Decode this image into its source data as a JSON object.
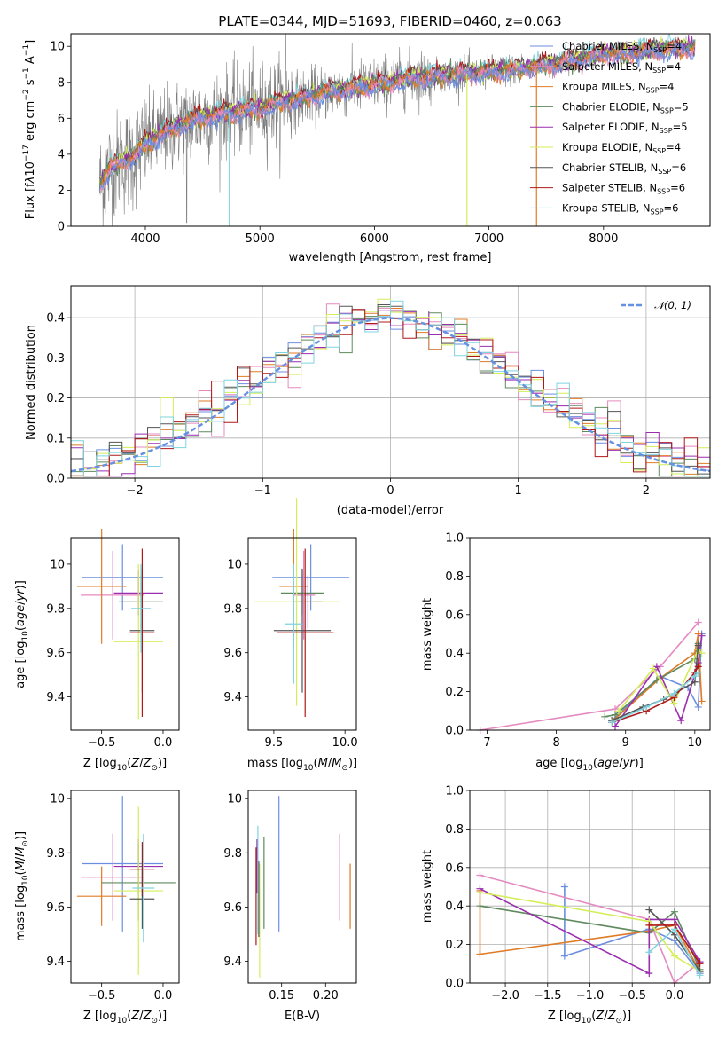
{
  "colors": [
    "#6c8ee0",
    "#e58ac0",
    "#e07b27",
    "#5e8a5e",
    "#9a2fb0",
    "#d4ee5a",
    "#555555",
    "#b01818",
    "#7dd3df"
  ],
  "spectrum_color": "#7f7f7f",
  "chart_data": [
    {
      "id": "spectrum",
      "type": "line",
      "title": "PLATE=0344, MJD=51693, FIBERID=0460, z=0.063",
      "xlabel": "wavelength [Angstrom, rest frame]",
      "ylabel": "Flux [f_λ10^-17 erg cm^-2 s^-1 A^-1]",
      "xlim": [
        3350,
        8930
      ],
      "ylim": [
        0,
        10.7
      ],
      "xticks": [
        4000,
        5000,
        6000,
        7000,
        8000
      ],
      "yticks": [
        0,
        2,
        4,
        6,
        8,
        10
      ],
      "legend_position": "upper-right",
      "legend": [
        {
          "name": "Chabrier MILES, N_SSP=4",
          "prefix": "Chabrier MILES, N",
          "sub": "SSP",
          "suffix": "=4"
        },
        {
          "name": "Salpeter MILES, N_SSP=4",
          "prefix": "Salpeter MILES, N",
          "sub": "SSP",
          "suffix": "=4"
        },
        {
          "name": "Kroupa MILES, N_SSP=4",
          "prefix": "Kroupa MILES, N",
          "sub": "SSP",
          "suffix": "=4"
        },
        {
          "name": "Chabrier ELODIE, N_SSP=5",
          "prefix": "Chabrier ELODIE, N",
          "sub": "SSP",
          "suffix": "=5"
        },
        {
          "name": "Salpeter ELODIE, N_SSP=5",
          "prefix": "Salpeter ELODIE, N",
          "sub": "SSP",
          "suffix": "=5"
        },
        {
          "name": "Kroupa ELODIE, N_SSP=4",
          "prefix": "Kroupa ELODIE, N",
          "sub": "SSP",
          "suffix": "=4"
        },
        {
          "name": "Chabrier STELIB, N_SSP=6",
          "prefix": "Chabrier STELIB, N",
          "sub": "SSP",
          "suffix": "=6"
        },
        {
          "name": "Salpeter STELIB, N_SSP=6",
          "prefix": "Salpeter STELIB, N",
          "sub": "SSP",
          "suffix": "=6"
        },
        {
          "name": "Kroupa STELIB, N_SSP=6",
          "prefix": "Kroupa STELIB, N",
          "sub": "SSP",
          "suffix": "=6"
        }
      ],
      "continuum": {
        "x": [
          3600,
          3700,
          3800,
          3900,
          4000,
          4200,
          4400,
          4600,
          4800,
          5000,
          5200,
          5400,
          5600,
          5800,
          6000,
          6200,
          6400,
          6600,
          6800,
          7000,
          7200,
          7400,
          7600,
          7800,
          8000,
          8200,
          8400,
          8600,
          8800
        ],
        "y": [
          2.3,
          3.3,
          3.6,
          3.9,
          4.6,
          5.4,
          5.9,
          6.2,
          6.4,
          6.6,
          6.9,
          7.2,
          7.5,
          7.7,
          7.9,
          8.1,
          8.3,
          8.4,
          8.5,
          8.6,
          8.7,
          8.9,
          9.1,
          9.3,
          9.6,
          9.6,
          9.8,
          9.9,
          9.9
        ]
      },
      "dips": [
        {
          "x": 4733,
          "series": 8
        },
        {
          "x": 6808,
          "series": 5
        },
        {
          "x": 7415,
          "series": 2
        }
      ]
    },
    {
      "id": "residuals",
      "type": "bar",
      "xlabel": "(data-model)/error",
      "ylabel": "Normed distribution",
      "xlim": [
        -2.5,
        2.5
      ],
      "ylim": [
        0,
        0.48
      ],
      "xticks": [
        -2,
        -1,
        0,
        1,
        2
      ],
      "xtick_labels": [
        "−2",
        "−1",
        "0",
        "1",
        "2"
      ],
      "yticks": [
        0,
        0.1,
        0.2,
        0.3,
        0.4
      ],
      "yticks_labels": [
        "0.0",
        "0.1",
        "0.2",
        "0.3",
        "0.4"
      ],
      "grid": true,
      "legend": [
        {
          "name": "N(0,1)",
          "label": "𝒩(0, 1)"
        }
      ],
      "legend_position": "upper-right",
      "bin_width": 0.1,
      "normal_curve": {
        "mean": 0,
        "sigma": 1,
        "style": "dashed"
      }
    },
    {
      "id": "age-vs-Z",
      "type": "errorbar",
      "xlabel": "Z [log10(Z/Z⊙)]",
      "ylabel": "age [log10(age/yr)]",
      "xlim": [
        -0.75,
        0.13
      ],
      "ylim": [
        9.25,
        10.12
      ],
      "xticks": [
        -0.5,
        0.0
      ],
      "xtick_labels": [
        "−0.5",
        "0.0"
      ],
      "yticks": [
        9.4,
        9.6,
        9.8,
        10.0
      ],
      "points": [
        {
          "x": -0.33,
          "y": 9.94,
          "xerr": 0.33,
          "yerr": 0.15
        },
        {
          "x": -0.41,
          "y": 9.86,
          "xerr": 0.26,
          "yerr": 0.2
        },
        {
          "x": -0.5,
          "y": 9.9,
          "xerr": 0.2,
          "yerr": 0.26
        },
        {
          "x": -0.18,
          "y": 9.83,
          "xerr": 0.18,
          "yerr": 0.12
        },
        {
          "x": -0.2,
          "y": 9.87,
          "xerr": 0.2,
          "yerr": 0.1
        },
        {
          "x": -0.2,
          "y": 9.65,
          "xerr": 0.2,
          "yerr": 0.35
        },
        {
          "x": -0.17,
          "y": 9.7,
          "xerr": 0.1,
          "yerr": 0.28
        },
        {
          "x": -0.17,
          "y": 9.69,
          "xerr": 0.1,
          "yerr": 0.38
        },
        {
          "x": -0.18,
          "y": 9.8,
          "xerr": 0.08,
          "yerr": 0.2
        }
      ]
    },
    {
      "id": "age-vs-mass",
      "type": "errorbar",
      "xlabel": "mass [log10(M/M⊙)]",
      "ylabel": "",
      "xlim": [
        9.32,
        10.08
      ],
      "ylim": [
        9.25,
        10.12
      ],
      "xticks": [
        9.5,
        10.0
      ],
      "xtick_labels": [
        "9.5",
        "10.0"
      ],
      "yticks": [
        9.4,
        9.6,
        9.8,
        10.0
      ],
      "points": [
        {
          "x": 9.76,
          "y": 9.94,
          "xerr": 0.27,
          "yerr": 0.15
        },
        {
          "x": 9.71,
          "y": 9.86,
          "xerr": 0.08,
          "yerr": 0.2
        },
        {
          "x": 9.64,
          "y": 9.9,
          "xerr": 0.1,
          "yerr": 0.26
        },
        {
          "x": 9.7,
          "y": 9.87,
          "xerr": 0.15,
          "yerr": 0.1
        },
        {
          "x": 9.74,
          "y": 9.83,
          "xerr": 0.1,
          "yerr": 0.12
        },
        {
          "x": 9.66,
          "y": 9.83,
          "xerr": 0.3,
          "yerr": 0.47
        },
        {
          "x": 9.7,
          "y": 9.7,
          "xerr": 0.2,
          "yerr": 0.28
        },
        {
          "x": 9.72,
          "y": 9.69,
          "xerr": 0.2,
          "yerr": 0.38
        },
        {
          "x": 9.64,
          "y": 9.73,
          "xerr": 0.06,
          "yerr": 0.27
        }
      ]
    },
    {
      "id": "weight-vs-age",
      "type": "line",
      "xlabel": "age [log10(age/yr)]",
      "ylabel": "mass weight",
      "xlim": [
        6.75,
        10.22
      ],
      "ylim": [
        0,
        1.0
      ],
      "xticks": [
        7,
        8,
        9,
        10
      ],
      "yticks": [
        0,
        0.2,
        0.4,
        0.6,
        0.8,
        1.0
      ],
      "yticks_labels": [
        "0.0",
        "0.2",
        "0.4",
        "0.6",
        "0.8",
        "1.0"
      ],
      "series": [
        {
          "x": [
            8.8,
            9.5,
            9.9,
            10.05,
            10.1
          ],
          "y": [
            0.05,
            0.28,
            0.22,
            0.12,
            0.5
          ]
        },
        {
          "x": [
            6.9,
            8.85,
            9.5,
            10.05
          ],
          "y": [
            0.0,
            0.11,
            0.33,
            0.56
          ]
        },
        {
          "x": [
            8.85,
            9.5,
            10.0,
            10.05,
            10.1
          ],
          "y": [
            0.06,
            0.27,
            0.4,
            0.5,
            0.15
          ]
        },
        {
          "x": [
            8.7,
            8.85,
            9.45,
            10.0,
            10.05
          ],
          "y": [
            0.07,
            0.08,
            0.26,
            0.37,
            0.45
          ]
        },
        {
          "x": [
            8.85,
            9.45,
            9.8,
            10.05,
            10.1
          ],
          "y": [
            0.02,
            0.33,
            0.05,
            0.35,
            0.49
          ]
        },
        {
          "x": [
            8.9,
            9.4,
            9.7,
            10.05,
            10.1
          ],
          "y": [
            0.1,
            0.32,
            0.14,
            0.42,
            0.4
          ]
        },
        {
          "x": [
            8.8,
            9.25,
            9.55,
            10.0,
            10.05
          ],
          "y": [
            0.05,
            0.12,
            0.16,
            0.25,
            0.44
          ]
        },
        {
          "x": [
            8.8,
            9.3,
            9.7,
            10.0,
            10.05
          ],
          "y": [
            0.04,
            0.1,
            0.17,
            0.3,
            0.33
          ]
        },
        {
          "x": [
            8.8,
            9.3,
            9.7,
            10.0,
            10.05
          ],
          "y": [
            0.04,
            0.12,
            0.19,
            0.28,
            0.3
          ]
        }
      ]
    },
    {
      "id": "mass-vs-Z",
      "type": "errorbar",
      "xlabel": "Z [log10(Z/Z⊙)]",
      "ylabel": "mass [log10(M/M⊙)]",
      "xlim": [
        -0.75,
        0.13
      ],
      "ylim": [
        9.32,
        10.03
      ],
      "xticks": [
        -0.5,
        0.0
      ],
      "xtick_labels": [
        "−0.5",
        "0.0"
      ],
      "yticks": [
        9.4,
        9.6,
        9.8,
        10.0
      ],
      "points": [
        {
          "x": -0.33,
          "y": 9.76,
          "xerr": 0.33,
          "yerr": 0.25
        },
        {
          "x": -0.41,
          "y": 9.71,
          "xerr": 0.26,
          "yerr": 0.16
        },
        {
          "x": -0.5,
          "y": 9.64,
          "xerr": 0.2,
          "yerr": 0.11
        },
        {
          "x": -0.2,
          "y": 9.69,
          "xerr": 0.3,
          "yerr": 0.14
        },
        {
          "x": -0.2,
          "y": 9.75,
          "xerr": 0.2,
          "yerr": 0.1
        },
        {
          "x": -0.2,
          "y": 9.66,
          "xerr": 0.2,
          "yerr": 0.31
        },
        {
          "x": -0.17,
          "y": 9.63,
          "xerr": 0.1,
          "yerr": 0.11
        },
        {
          "x": -0.17,
          "y": 9.74,
          "xerr": 0.1,
          "yerr": 0.1
        },
        {
          "x": -0.16,
          "y": 9.67,
          "xerr": 0.09,
          "yerr": 0.2
        }
      ]
    },
    {
      "id": "mass-vs-EBV",
      "type": "errorbar",
      "xlabel": "E(B-V)",
      "ylabel": "",
      "xlim": [
        0.112,
        0.235
      ],
      "ylim": [
        9.32,
        10.03
      ],
      "xticks": [
        0.15,
        0.2
      ],
      "xtick_labels": [
        "0.15",
        "0.20"
      ],
      "yticks": [
        9.4,
        9.6,
        9.8,
        10.0
      ],
      "points": [
        {
          "x": 0.147,
          "y": 9.76,
          "xerr": 0,
          "yerr": 0.25
        },
        {
          "x": 0.216,
          "y": 9.71,
          "xerr": 0,
          "yerr": 0.16
        },
        {
          "x": 0.228,
          "y": 9.64,
          "xerr": 0,
          "yerr": 0.12
        },
        {
          "x": 0.13,
          "y": 9.69,
          "xerr": 0,
          "yerr": 0.17
        },
        {
          "x": 0.122,
          "y": 9.75,
          "xerr": 0,
          "yerr": 0.1
        },
        {
          "x": 0.125,
          "y": 9.55,
          "xerr": 0,
          "yerr": 0.21
        },
        {
          "x": 0.124,
          "y": 9.63,
          "xerr": 0,
          "yerr": 0.14
        },
        {
          "x": 0.121,
          "y": 9.64,
          "xerr": 0,
          "yerr": 0.18
        },
        {
          "x": 0.123,
          "y": 9.7,
          "xerr": 0,
          "yerr": 0.2
        }
      ]
    },
    {
      "id": "weight-vs-Z",
      "type": "line",
      "xlabel": "Z [log10(Z/Z⊙)]",
      "ylabel": "mass weight",
      "xlim": [
        -2.42,
        0.42
      ],
      "ylim": [
        0,
        1.0
      ],
      "xticks": [
        -2.0,
        -1.5,
        -1.0,
        -0.5,
        0.0
      ],
      "xtick_labels": [
        "−2.0",
        "−1.5",
        "−1.0",
        "−0.5",
        "0.0"
      ],
      "yticks": [
        0,
        0.2,
        0.4,
        0.6,
        0.8,
        1.0
      ],
      "yticks_labels": [
        "0.0",
        "0.2",
        "0.4",
        "0.6",
        "0.8",
        "1.0"
      ],
      "grid": true,
      "series": [
        {
          "x": [
            -1.3,
            -1.3,
            -0.3,
            0.0,
            0.3
          ],
          "y": [
            0.5,
            0.14,
            0.28,
            0.22,
            0.05
          ]
        },
        {
          "x": [
            -2.3,
            -0.3,
            0.0,
            0.3
          ],
          "y": [
            0.56,
            0.33,
            0.0,
            0.11
          ]
        },
        {
          "x": [
            -2.3,
            -2.3,
            -0.3,
            0.0,
            0.3
          ],
          "y": [
            0.48,
            0.15,
            0.27,
            0.3,
            0.06
          ]
        },
        {
          "x": [
            -2.3,
            -0.3,
            0.0,
            0.3
          ],
          "y": [
            0.4,
            0.26,
            0.37,
            0.07
          ]
        },
        {
          "x": [
            -2.3,
            -0.3,
            -0.3,
            0.0,
            0.3
          ],
          "y": [
            0.49,
            0.05,
            0.33,
            0.33,
            0.11
          ]
        },
        {
          "x": [
            -2.3,
            -0.3,
            0.0,
            0.3
          ],
          "y": [
            0.47,
            0.32,
            0.14,
            0.06
          ]
        },
        {
          "x": [
            -0.3,
            0.0,
            0.3
          ],
          "y": [
            0.38,
            0.25,
            0.06
          ]
        },
        {
          "x": [
            -0.3,
            0.0,
            0.3
          ],
          "y": [
            0.3,
            0.3,
            0.1
          ]
        },
        {
          "x": [
            -0.3,
            0.0,
            0.3
          ],
          "y": [
            0.16,
            0.28,
            0.04
          ]
        }
      ]
    }
  ]
}
